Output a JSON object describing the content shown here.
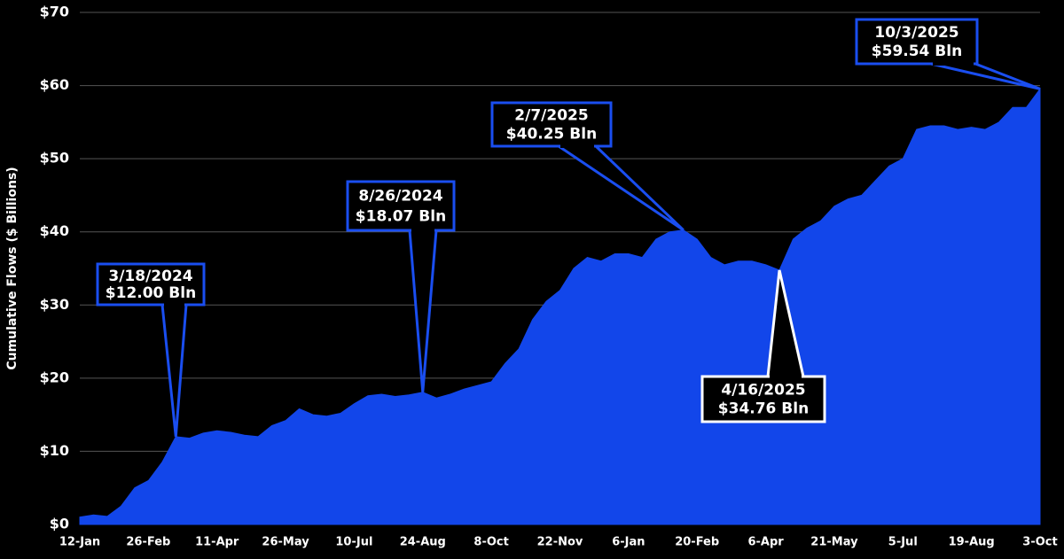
{
  "chart_data": {
    "type": "area",
    "ylabel": "Cumulative Flows ($ Billions)",
    "color": "#1246ea",
    "grid": true,
    "ylim": [
      0,
      70
    ],
    "yticks": [
      {
        "value": 0,
        "label": "$0"
      },
      {
        "value": 10,
        "label": "$10"
      },
      {
        "value": 20,
        "label": "$20"
      },
      {
        "value": 30,
        "label": "$30"
      },
      {
        "value": 40,
        "label": "$40"
      },
      {
        "value": 50,
        "label": "$50"
      },
      {
        "value": 60,
        "label": "$60"
      },
      {
        "value": 70,
        "label": "$70"
      }
    ],
    "categories": [
      "12-Jan",
      null,
      null,
      null,
      null,
      "26-Feb",
      null,
      null,
      null,
      null,
      "11-Apr",
      null,
      null,
      null,
      null,
      "26-May",
      null,
      null,
      null,
      null,
      "10-Jul",
      null,
      null,
      null,
      null,
      "24-Aug",
      null,
      null,
      null,
      null,
      "8-Oct",
      null,
      null,
      null,
      null,
      "22-Nov",
      null,
      null,
      null,
      null,
      "6-Jan",
      null,
      null,
      null,
      null,
      "20-Feb",
      null,
      null,
      null,
      null,
      "6-Apr",
      null,
      null,
      null,
      null,
      "21-May",
      null,
      null,
      null,
      null,
      "5-Jul",
      null,
      null,
      null,
      null,
      "19-Aug",
      null,
      null,
      null,
      null,
      "3-Oct"
    ],
    "values": [
      1.0,
      1.3,
      1.1,
      2.5,
      5.0,
      6.0,
      8.5,
      12.0,
      11.8,
      12.5,
      12.8,
      12.6,
      12.2,
      12.0,
      13.5,
      14.2,
      15.8,
      15.0,
      14.8,
      15.2,
      16.5,
      17.6,
      17.8,
      17.5,
      17.7,
      18.07,
      17.3,
      17.8,
      18.5,
      19.0,
      19.5,
      22.0,
      24.0,
      28.0,
      30.5,
      32.0,
      35.0,
      36.5,
      36.0,
      37.0,
      37.0,
      36.5,
      39.0,
      40.0,
      40.25,
      39.0,
      36.5,
      35.5,
      36.0,
      36.0,
      35.5,
      34.76,
      39.0,
      40.5,
      41.5,
      43.5,
      44.5,
      45.0,
      47.0,
      49.0,
      50.0,
      54.0,
      54.5,
      54.5,
      54.0,
      54.3,
      54.0,
      55.0,
      57.0,
      57.0,
      59.54
    ],
    "annotations": [
      {
        "date": "3/18/2024",
        "value": 12.0,
        "value_label": "$12.00 Bln"
      },
      {
        "date": "8/26/2024",
        "value": 18.07,
        "value_label": "$18.07 Bln"
      },
      {
        "date": "2/7/2025",
        "value": 40.25,
        "value_label": "$40.25 Bln"
      },
      {
        "date": "4/16/2025",
        "value": 34.76,
        "value_label": "$34.76 Bln"
      },
      {
        "date": "10/3/2025",
        "value": 59.54,
        "value_label": "$59.54 Bln"
      }
    ]
  }
}
